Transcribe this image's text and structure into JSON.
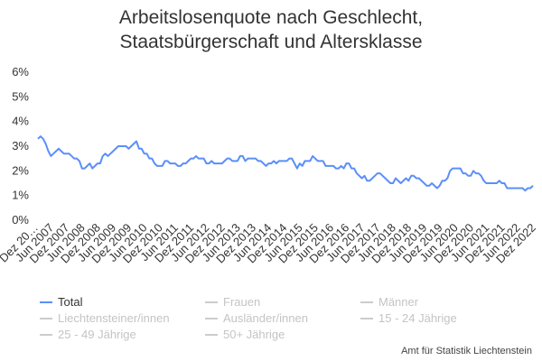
{
  "chart_data": {
    "type": "line",
    "title": [
      "Arbeitslosenquote nach Geschlecht,",
      "Staatsbürgerschaft und Altersklasse"
    ],
    "ylim": [
      0,
      6
    ],
    "y_ticks": [
      "0%",
      "1%",
      "2%",
      "3%",
      "4%",
      "5%",
      "6%"
    ],
    "x_tick_labels": [
      "Dez 20…",
      "Jun 2007",
      "Dez 2007",
      "Jun 2008",
      "Dez 2008",
      "Jun 2009",
      "Dez 2009",
      "Jun 2010",
      "Dez 2010",
      "Jun 2011",
      "Dez 2011",
      "Jun 2012",
      "Dez 2012",
      "Jun 2013",
      "Dez 2013",
      "Jun 2014",
      "Dez 2014",
      "Jun 2015",
      "Dez 2015",
      "Jun 2016",
      "Dez 2016",
      "Jun 2017",
      "Dez 2017",
      "Jun 2018",
      "Dez 2018",
      "Jun 2019",
      "Dez 2019",
      "Jun 2020",
      "Dez 2020",
      "Jun 2021",
      "Dez 2021",
      "Jun 2022",
      "Dez 2022"
    ],
    "series": [
      {
        "name": "Total",
        "color": "#5b8ff9",
        "active": true,
        "points": [
          [
            "2006-12",
            3.3
          ],
          [
            "2007-01",
            3.4
          ],
          [
            "2007-02",
            3.3
          ],
          [
            "2007-03",
            3.1
          ],
          [
            "2007-04",
            2.8
          ],
          [
            "2007-05",
            2.6
          ],
          [
            "2007-06",
            2.7
          ],
          [
            "2007-07",
            2.8
          ],
          [
            "2007-08",
            2.9
          ],
          [
            "2007-09",
            2.8
          ],
          [
            "2007-10",
            2.7
          ],
          [
            "2007-11",
            2.7
          ],
          [
            "2007-12",
            2.7
          ],
          [
            "2008-01",
            2.6
          ],
          [
            "2008-02",
            2.5
          ],
          [
            "2008-03",
            2.5
          ],
          [
            "2008-04",
            2.4
          ],
          [
            "2008-05",
            2.1
          ],
          [
            "2008-06",
            2.1
          ],
          [
            "2008-07",
            2.2
          ],
          [
            "2008-08",
            2.3
          ],
          [
            "2008-09",
            2.1
          ],
          [
            "2008-10",
            2.2
          ],
          [
            "2008-11",
            2.3
          ],
          [
            "2008-12",
            2.3
          ],
          [
            "2009-01",
            2.6
          ],
          [
            "2009-02",
            2.7
          ],
          [
            "2009-03",
            2.6
          ],
          [
            "2009-04",
            2.7
          ],
          [
            "2009-05",
            2.8
          ],
          [
            "2009-06",
            2.9
          ],
          [
            "2009-07",
            3.0
          ],
          [
            "2009-08",
            3.0
          ],
          [
            "2009-09",
            3.0
          ],
          [
            "2009-10",
            3.0
          ],
          [
            "2009-11",
            2.9
          ],
          [
            "2009-12",
            3.0
          ],
          [
            "2010-01",
            3.1
          ],
          [
            "2010-02",
            3.2
          ],
          [
            "2010-03",
            2.9
          ],
          [
            "2010-04",
            2.9
          ],
          [
            "2010-05",
            2.7
          ],
          [
            "2010-06",
            2.7
          ],
          [
            "2010-07",
            2.5
          ],
          [
            "2010-08",
            2.5
          ],
          [
            "2010-09",
            2.3
          ],
          [
            "2010-10",
            2.2
          ],
          [
            "2010-11",
            2.2
          ],
          [
            "2010-12",
            2.2
          ],
          [
            "2011-01",
            2.4
          ],
          [
            "2011-02",
            2.4
          ],
          [
            "2011-03",
            2.3
          ],
          [
            "2011-04",
            2.3
          ],
          [
            "2011-05",
            2.3
          ],
          [
            "2011-06",
            2.2
          ],
          [
            "2011-07",
            2.2
          ],
          [
            "2011-08",
            2.3
          ],
          [
            "2011-09",
            2.3
          ],
          [
            "2011-10",
            2.4
          ],
          [
            "2011-11",
            2.5
          ],
          [
            "2011-12",
            2.5
          ],
          [
            "2012-01",
            2.6
          ],
          [
            "2012-02",
            2.5
          ],
          [
            "2012-03",
            2.5
          ],
          [
            "2012-04",
            2.5
          ],
          [
            "2012-05",
            2.3
          ],
          [
            "2012-06",
            2.3
          ],
          [
            "2012-07",
            2.4
          ],
          [
            "2012-08",
            2.3
          ],
          [
            "2012-09",
            2.3
          ],
          [
            "2012-10",
            2.3
          ],
          [
            "2012-11",
            2.3
          ],
          [
            "2012-12",
            2.4
          ],
          [
            "2013-01",
            2.5
          ],
          [
            "2013-02",
            2.5
          ],
          [
            "2013-03",
            2.4
          ],
          [
            "2013-04",
            2.4
          ],
          [
            "2013-05",
            2.4
          ],
          [
            "2013-06",
            2.6
          ],
          [
            "2013-07",
            2.6
          ],
          [
            "2013-08",
            2.4
          ],
          [
            "2013-09",
            2.5
          ],
          [
            "2013-10",
            2.5
          ],
          [
            "2013-11",
            2.5
          ],
          [
            "2013-12",
            2.5
          ],
          [
            "2014-01",
            2.4
          ],
          [
            "2014-02",
            2.4
          ],
          [
            "2014-03",
            2.3
          ],
          [
            "2014-04",
            2.2
          ],
          [
            "2014-05",
            2.3
          ],
          [
            "2014-06",
            2.3
          ],
          [
            "2014-07",
            2.4
          ],
          [
            "2014-08",
            2.3
          ],
          [
            "2014-09",
            2.4
          ],
          [
            "2014-10",
            2.4
          ],
          [
            "2014-11",
            2.4
          ],
          [
            "2014-12",
            2.4
          ],
          [
            "2015-01",
            2.5
          ],
          [
            "2015-02",
            2.5
          ],
          [
            "2015-03",
            2.3
          ],
          [
            "2015-04",
            2.1
          ],
          [
            "2015-05",
            2.3
          ],
          [
            "2015-06",
            2.2
          ],
          [
            "2015-07",
            2.4
          ],
          [
            "2015-08",
            2.4
          ],
          [
            "2015-09",
            2.4
          ],
          [
            "2015-10",
            2.6
          ],
          [
            "2015-11",
            2.5
          ],
          [
            "2015-12",
            2.4
          ],
          [
            "2016-01",
            2.4
          ],
          [
            "2016-02",
            2.4
          ],
          [
            "2016-03",
            2.2
          ],
          [
            "2016-04",
            2.2
          ],
          [
            "2016-05",
            2.2
          ],
          [
            "2016-06",
            2.2
          ],
          [
            "2016-07",
            2.1
          ],
          [
            "2016-08",
            2.1
          ],
          [
            "2016-09",
            2.2
          ],
          [
            "2016-10",
            2.1
          ],
          [
            "2016-11",
            2.3
          ],
          [
            "2016-12",
            2.3
          ],
          [
            "2017-01",
            2.1
          ],
          [
            "2017-02",
            2.1
          ],
          [
            "2017-03",
            1.9
          ],
          [
            "2017-04",
            1.8
          ],
          [
            "2017-05",
            1.7
          ],
          [
            "2017-06",
            1.8
          ],
          [
            "2017-07",
            1.6
          ],
          [
            "2017-08",
            1.6
          ],
          [
            "2017-09",
            1.7
          ],
          [
            "2017-10",
            1.8
          ],
          [
            "2017-11",
            1.9
          ],
          [
            "2017-12",
            1.9
          ],
          [
            "2018-01",
            1.8
          ],
          [
            "2018-02",
            1.7
          ],
          [
            "2018-03",
            1.6
          ],
          [
            "2018-04",
            1.5
          ],
          [
            "2018-05",
            1.5
          ],
          [
            "2018-06",
            1.7
          ],
          [
            "2018-07",
            1.6
          ],
          [
            "2018-08",
            1.5
          ],
          [
            "2018-09",
            1.6
          ],
          [
            "2018-10",
            1.7
          ],
          [
            "2018-11",
            1.6
          ],
          [
            "2018-12",
            1.8
          ],
          [
            "2019-01",
            1.8
          ],
          [
            "2019-02",
            1.7
          ],
          [
            "2019-03",
            1.7
          ],
          [
            "2019-04",
            1.6
          ],
          [
            "2019-05",
            1.5
          ],
          [
            "2019-06",
            1.4
          ],
          [
            "2019-07",
            1.4
          ],
          [
            "2019-08",
            1.5
          ],
          [
            "2019-09",
            1.4
          ],
          [
            "2019-10",
            1.3
          ],
          [
            "2019-11",
            1.4
          ],
          [
            "2019-12",
            1.6
          ],
          [
            "2020-01",
            1.6
          ],
          [
            "2020-02",
            1.7
          ],
          [
            "2020-03",
            2.0
          ],
          [
            "2020-04",
            2.1
          ],
          [
            "2020-05",
            2.1
          ],
          [
            "2020-06",
            2.1
          ],
          [
            "2020-07",
            2.1
          ],
          [
            "2020-08",
            1.9
          ],
          [
            "2020-09",
            1.9
          ],
          [
            "2020-10",
            1.8
          ],
          [
            "2020-11",
            1.8
          ],
          [
            "2020-12",
            2.0
          ],
          [
            "2021-01",
            1.9
          ],
          [
            "2021-02",
            1.9
          ],
          [
            "2021-03",
            1.8
          ],
          [
            "2021-04",
            1.6
          ],
          [
            "2021-05",
            1.5
          ],
          [
            "2021-06",
            1.5
          ],
          [
            "2021-07",
            1.5
          ],
          [
            "2021-08",
            1.5
          ],
          [
            "2021-09",
            1.5
          ],
          [
            "2021-10",
            1.6
          ],
          [
            "2021-11",
            1.5
          ],
          [
            "2021-12",
            1.5
          ],
          [
            "2022-01",
            1.3
          ],
          [
            "2022-02",
            1.3
          ],
          [
            "2022-03",
            1.3
          ],
          [
            "2022-04",
            1.3
          ],
          [
            "2022-05",
            1.3
          ],
          [
            "2022-06",
            1.3
          ],
          [
            "2022-07",
            1.3
          ],
          [
            "2022-08",
            1.2
          ],
          [
            "2022-09",
            1.3
          ],
          [
            "2022-10",
            1.3
          ],
          [
            "2022-11",
            1.4
          ]
        ]
      },
      {
        "name": "Frauen",
        "color": "#cccccc",
        "active": false
      },
      {
        "name": "Männer",
        "color": "#cccccc",
        "active": false
      },
      {
        "name": "Liechtensteiner/innen",
        "color": "#cccccc",
        "active": false
      },
      {
        "name": "Ausländer/innen",
        "color": "#cccccc",
        "active": false
      },
      {
        "name": "15 - 24 Jährige",
        "color": "#cccccc",
        "active": false
      },
      {
        "name": "25 - 49 Jährige",
        "color": "#cccccc",
        "active": false
      },
      {
        "name": "50+ Jährige",
        "color": "#cccccc",
        "active": false
      }
    ],
    "grid": false,
    "legend_position": "bottom"
  },
  "source": "Amt für Statistik Liechtenstein",
  "colors": {
    "active_series": "#5b8ff9",
    "inactive_legend": "#cccccc",
    "text": "#333333"
  }
}
